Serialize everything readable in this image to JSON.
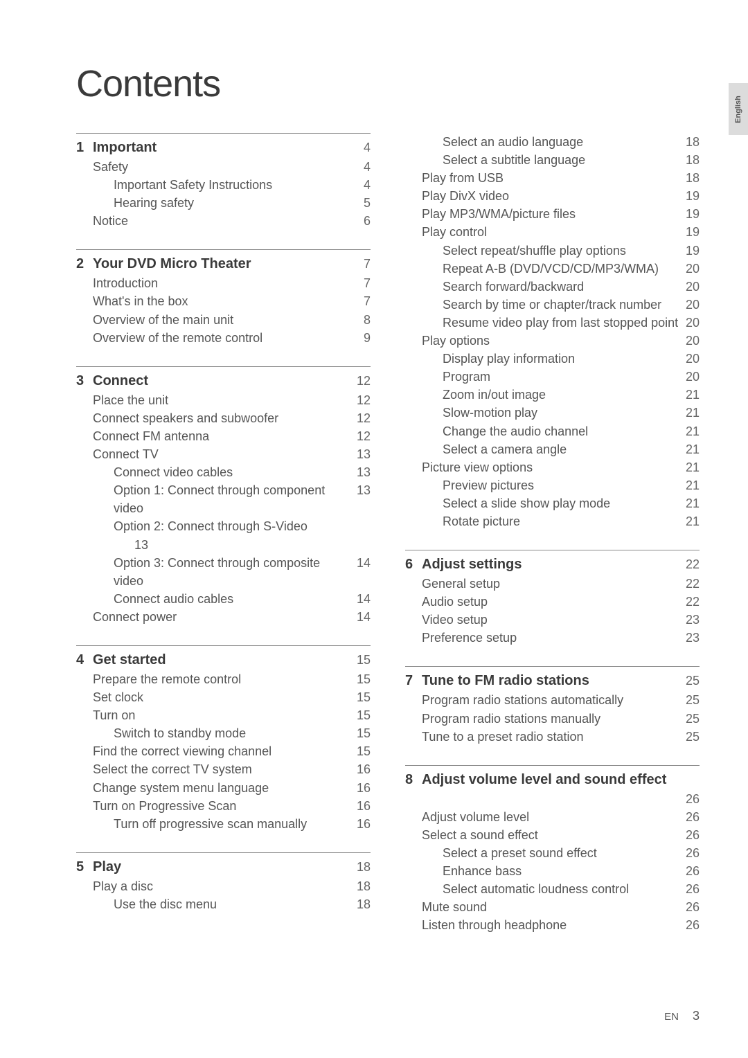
{
  "title": "Contents",
  "side_tab": "English",
  "footer": {
    "lang": "EN",
    "page": "3"
  },
  "colors": {
    "text": "#4a4a4a",
    "heading": "#3a3a3a",
    "muted": "#666",
    "tab_bg": "#dcdcdc"
  },
  "fonts": {
    "title_size": 54,
    "section_size": 20,
    "entry_size": 18
  },
  "sections_left": [
    {
      "num": "1",
      "title": "Important",
      "page": "4",
      "items": [
        {
          "t": "Safety",
          "p": "4",
          "i": 1
        },
        {
          "t": "Important Safety Instructions",
          "p": "4",
          "i": 2
        },
        {
          "t": "Hearing safety",
          "p": "5",
          "i": 2
        },
        {
          "t": "Notice",
          "p": "6",
          "i": 1
        }
      ]
    },
    {
      "num": "2",
      "title": "Your DVD Micro Theater",
      "page": "7",
      "items": [
        {
          "t": "Introduction",
          "p": "7",
          "i": 1
        },
        {
          "t": "What's in the box",
          "p": "7",
          "i": 1
        },
        {
          "t": "Overview of the main unit",
          "p": "8",
          "i": 1
        },
        {
          "t": "Overview of the remote control",
          "p": "9",
          "i": 1
        }
      ]
    },
    {
      "num": "3",
      "title": "Connect",
      "page": "12",
      "items": [
        {
          "t": "Place the unit",
          "p": "12",
          "i": 1
        },
        {
          "t": "Connect speakers and subwoofer",
          "p": "12",
          "i": 1
        },
        {
          "t": "Connect FM antenna",
          "p": "12",
          "i": 1
        },
        {
          "t": "Connect TV",
          "p": "13",
          "i": 1
        },
        {
          "t": "Connect video cables",
          "p": "13",
          "i": 2
        },
        {
          "t": "Option 1: Connect through component video",
          "p": "13",
          "i": 2,
          "hang": true
        },
        {
          "t": "Option 2: Connect through S-Video",
          "p": "",
          "i": 2
        },
        {
          "t": "13",
          "p": "",
          "i": 3
        },
        {
          "t": "Option 3: Connect through composite video",
          "p": "14",
          "i": 2,
          "hang": true
        },
        {
          "t": "Connect audio cables",
          "p": "14",
          "i": 2
        },
        {
          "t": "Connect power",
          "p": "14",
          "i": 1
        }
      ]
    },
    {
      "num": "4",
      "title": "Get started",
      "page": "15",
      "items": [
        {
          "t": "Prepare the remote control",
          "p": "15",
          "i": 1
        },
        {
          "t": "Set clock",
          "p": "15",
          "i": 1
        },
        {
          "t": "Turn on",
          "p": "15",
          "i": 1
        },
        {
          "t": "Switch to standby mode",
          "p": "15",
          "i": 2
        },
        {
          "t": "Find the correct viewing channel",
          "p": "15",
          "i": 1
        },
        {
          "t": "Select the correct TV system",
          "p": "16",
          "i": 1
        },
        {
          "t": "Change system menu language",
          "p": "16",
          "i": 1
        },
        {
          "t": "Turn on Progressive Scan",
          "p": "16",
          "i": 1
        },
        {
          "t": "Turn off progressive scan manually",
          "p": "16",
          "i": 2
        }
      ]
    },
    {
      "num": "5",
      "title": "Play",
      "page": "18",
      "items": [
        {
          "t": "Play a disc",
          "p": "18",
          "i": 1
        },
        {
          "t": "Use the disc menu",
          "p": "18",
          "i": 2
        }
      ]
    }
  ],
  "sections_right": [
    {
      "num": "",
      "title": "",
      "page": "",
      "items": [
        {
          "t": "Select an audio language",
          "p": "18",
          "i": 2
        },
        {
          "t": "Select a subtitle language",
          "p": "18",
          "i": 2
        },
        {
          "t": "Play from USB",
          "p": "18",
          "i": 1
        },
        {
          "t": "Play DivX video",
          "p": "19",
          "i": 1
        },
        {
          "t": "Play MP3/WMA/picture files",
          "p": "19",
          "i": 1
        },
        {
          "t": "Play control",
          "p": "19",
          "i": 1
        },
        {
          "t": "Select repeat/shuffle play options",
          "p": "19",
          "i": 2
        },
        {
          "t": "Repeat A-B (DVD/VCD/CD/MP3/WMA)",
          "p": "20",
          "i": 2,
          "hang": true
        },
        {
          "t": "Search forward/backward",
          "p": "20",
          "i": 2
        },
        {
          "t": "Search by time or chapter/track number",
          "p": "20",
          "i": 2,
          "hang": true
        },
        {
          "t": "Resume video play from last stopped point",
          "p": "20",
          "i": 2,
          "hang": true
        },
        {
          "t": "Play options",
          "p": "20",
          "i": 1
        },
        {
          "t": "Display play information",
          "p": "20",
          "i": 2
        },
        {
          "t": "Program",
          "p": "20",
          "i": 2
        },
        {
          "t": "Zoom in/out image",
          "p": "21",
          "i": 2
        },
        {
          "t": "Slow-motion play",
          "p": "21",
          "i": 2
        },
        {
          "t": "Change the audio channel",
          "p": "21",
          "i": 2
        },
        {
          "t": "Select a camera angle",
          "p": "21",
          "i": 2
        },
        {
          "t": "Picture view options",
          "p": "21",
          "i": 1
        },
        {
          "t": "Preview pictures",
          "p": "21",
          "i": 2
        },
        {
          "t": "Select a slide show play mode",
          "p": "21",
          "i": 2
        },
        {
          "t": "Rotate picture",
          "p": "21",
          "i": 2
        }
      ]
    },
    {
      "num": "6",
      "title": "Adjust settings",
      "page": "22",
      "items": [
        {
          "t": "General setup",
          "p": "22",
          "i": 1
        },
        {
          "t": "Audio setup",
          "p": "22",
          "i": 1
        },
        {
          "t": "Video setup",
          "p": "23",
          "i": 1
        },
        {
          "t": "Preference setup",
          "p": "23",
          "i": 1
        }
      ]
    },
    {
      "num": "7",
      "title": "Tune to FM radio stations",
      "page": "25",
      "items": [
        {
          "t": "Program radio stations automatically",
          "p": "25",
          "i": 1
        },
        {
          "t": "Program radio stations manually",
          "p": "25",
          "i": 1
        },
        {
          "t": "Tune to a preset radio station",
          "p": "25",
          "i": 1
        }
      ]
    },
    {
      "num": "8",
      "title": "Adjust volume level and sound effect",
      "page": "",
      "items": [
        {
          "t": "",
          "p": "26",
          "i": 1
        },
        {
          "t": "Adjust volume level",
          "p": "26",
          "i": 1
        },
        {
          "t": "Select a sound effect",
          "p": "26",
          "i": 1
        },
        {
          "t": "Select a preset sound effect",
          "p": "26",
          "i": 2
        },
        {
          "t": "Enhance bass",
          "p": "26",
          "i": 2
        },
        {
          "t": "Select automatic loudness control",
          "p": "26",
          "i": 2
        },
        {
          "t": "Mute sound",
          "p": "26",
          "i": 1
        },
        {
          "t": "Listen through headphone",
          "p": "26",
          "i": 1
        }
      ]
    }
  ]
}
